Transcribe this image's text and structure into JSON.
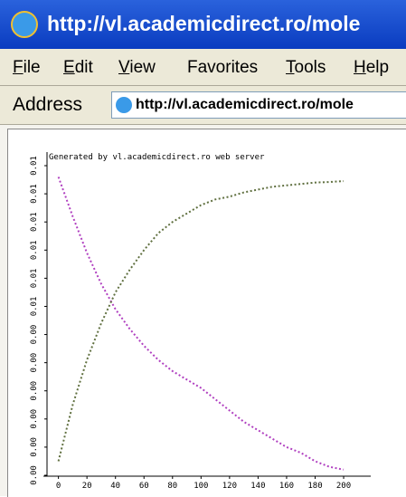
{
  "window": {
    "title": "http://vl.academicdirect.ro/mole"
  },
  "menu": [
    "File",
    "Edit",
    "View",
    "Favorites",
    "Tools",
    "Help"
  ],
  "address": {
    "label": "Address",
    "url": "http://vl.academicdirect.ro/mole"
  },
  "chart_data": {
    "type": "line",
    "annotation": "Generated by vl.academicdirect.ro web server",
    "x": [
      0,
      10,
      20,
      30,
      40,
      50,
      60,
      70,
      80,
      90,
      100,
      110,
      120,
      130,
      140,
      150,
      160,
      170,
      180,
      190,
      200
    ],
    "series": [
      {
        "color": "#b040c0",
        "values": [
          0.0106,
          0.0092,
          0.0079,
          0.0068,
          0.0059,
          0.0052,
          0.0046,
          0.0041,
          0.0037,
          0.0034,
          0.0031,
          0.0027,
          0.0023,
          0.0019,
          0.0016,
          0.0013,
          0.001,
          0.0008,
          0.0005,
          0.0003,
          0.0002
        ]
      },
      {
        "color": "#607040",
        "values": [
          0.0005,
          0.0025,
          0.0041,
          0.0054,
          0.0065,
          0.0073,
          0.008,
          0.0086,
          0.009,
          0.0093,
          0.0096,
          0.0098,
          0.0099,
          0.01005,
          0.01015,
          0.01025,
          0.0103,
          0.01035,
          0.0104,
          0.01042,
          0.01045
        ]
      }
    ],
    "xlim": [
      -8,
      219
    ],
    "xticks": [
      0,
      20,
      40,
      60,
      80,
      100,
      120,
      140,
      160,
      180,
      200
    ],
    "ylim": [
      0,
      0.011
    ],
    "yticks": [
      {
        "value": 0,
        "label": "0.00"
      },
      {
        "value": 0.001,
        "label": "0.00"
      },
      {
        "value": 0.002,
        "label": "0.00"
      },
      {
        "value": 0.003,
        "label": "0.00"
      },
      {
        "value": 0.004,
        "label": "0.00"
      },
      {
        "value": 0.005,
        "label": "0.00"
      },
      {
        "value": 0.006,
        "label": "0.01"
      },
      {
        "value": 0.007,
        "label": "0.01"
      },
      {
        "value": 0.008,
        "label": "0.01"
      },
      {
        "value": 0.009,
        "label": "0.01"
      },
      {
        "value": 0.01,
        "label": "0.01"
      },
      {
        "value": 0.011,
        "label": "0.01"
      }
    ],
    "grid": false
  }
}
